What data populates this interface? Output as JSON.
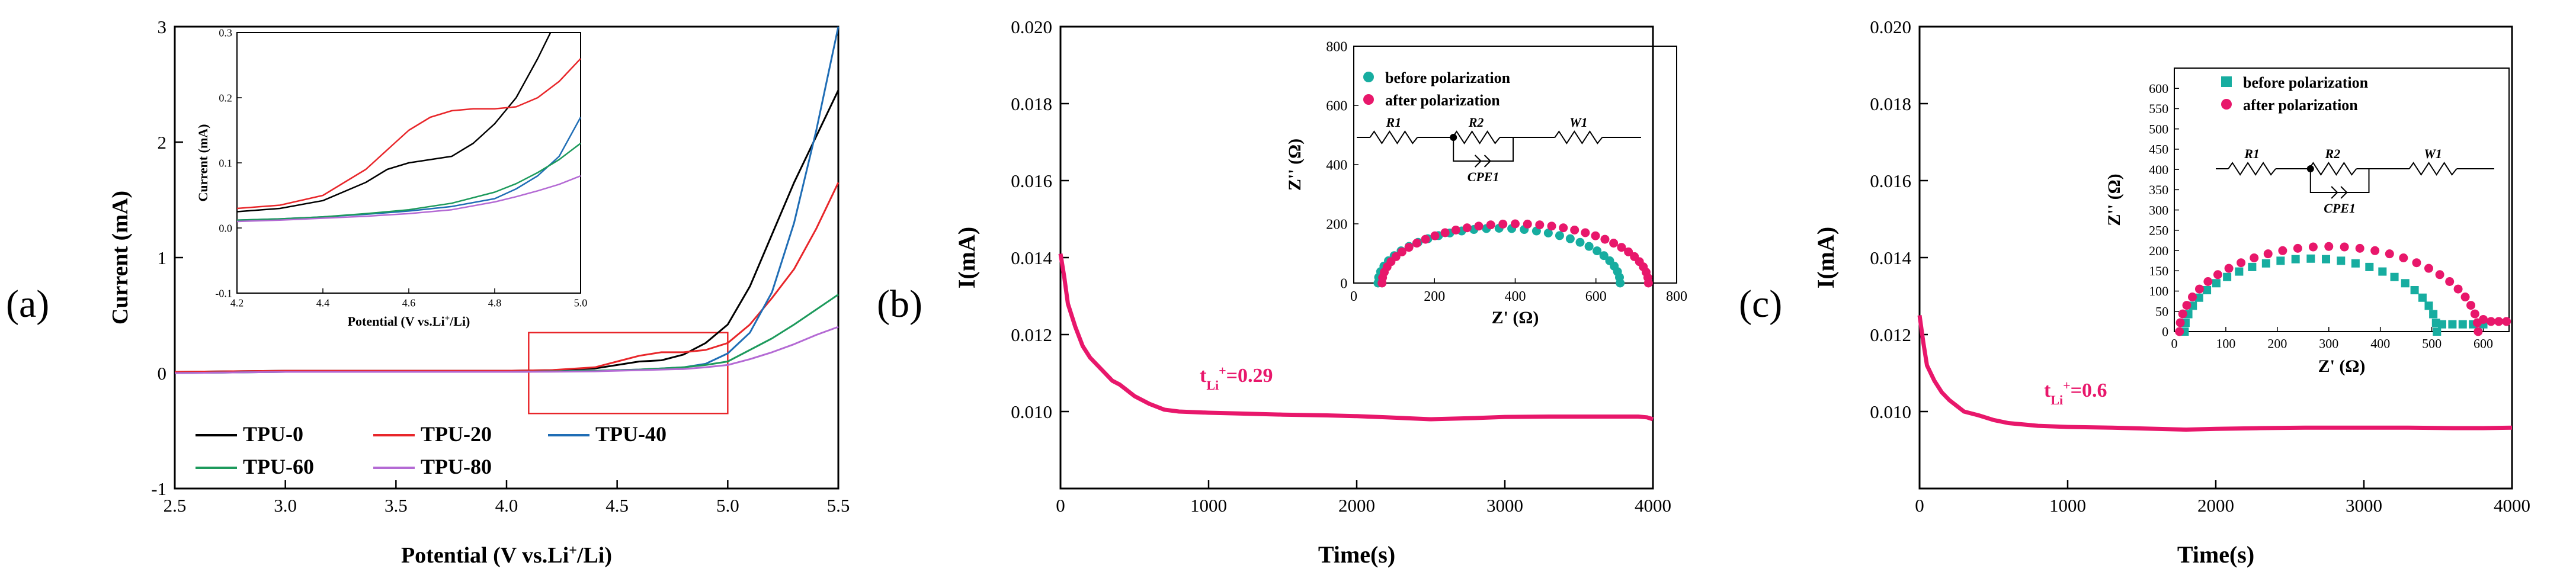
{
  "colors": {
    "tpu0": "#000000",
    "tpu20": "#e8262a",
    "tpu40": "#1f6db5",
    "tpu60": "#1d9a5c",
    "tpu80": "#b46ad4",
    "pink": "#e8176b",
    "teal": "#17ada0",
    "inset_box": "#e8262a"
  },
  "chart_data": [
    {
      "type": "line",
      "panel_label": "(a)",
      "xlabel_pre": "Potential (V vs.Li",
      "xlabel_sup": "+",
      "xlabel_post": "/Li)",
      "ylabel": "Current (mA)",
      "xlim": [
        2.5,
        5.5
      ],
      "ylim": [
        -1,
        3
      ],
      "xticks": [
        2.5,
        3.0,
        3.5,
        4.0,
        4.5,
        5.0,
        5.5
      ],
      "xtick_labels": [
        "2.5",
        "3.0",
        "3.5",
        "4.0",
        "4.5",
        "5.0",
        "5.5"
      ],
      "yticks": [
        -1,
        0,
        1,
        2,
        3
      ],
      "ytick_labels": [
        "-1",
        "0",
        "1",
        "2",
        "3"
      ],
      "legend": "bottom-left",
      "series": [
        {
          "name": "TPU-0",
          "color_key": "tpu0",
          "x": [
            2.5,
            3.0,
            3.5,
            4.0,
            4.2,
            4.4,
            4.5,
            4.6,
            4.7,
            4.8,
            4.9,
            5.0,
            5.1,
            5.2,
            5.3,
            5.4,
            5.5
          ],
          "y": [
            0.01,
            0.02,
            0.02,
            0.02,
            0.025,
            0.04,
            0.07,
            0.1,
            0.11,
            0.16,
            0.26,
            0.42,
            0.75,
            1.2,
            1.65,
            2.05,
            2.45
          ]
        },
        {
          "name": "TPU-20",
          "color_key": "tpu20",
          "x": [
            2.5,
            3.0,
            3.5,
            4.0,
            4.2,
            4.4,
            4.5,
            4.6,
            4.7,
            4.8,
            4.9,
            5.0,
            5.1,
            5.2,
            5.3,
            5.4,
            5.5
          ],
          "y": [
            0.01,
            0.02,
            0.02,
            0.02,
            0.025,
            0.05,
            0.1,
            0.15,
            0.18,
            0.18,
            0.2,
            0.26,
            0.42,
            0.65,
            0.9,
            1.25,
            1.65
          ]
        },
        {
          "name": "TPU-40",
          "color_key": "tpu40",
          "x": [
            2.5,
            3.0,
            3.5,
            4.0,
            4.2,
            4.4,
            4.5,
            4.6,
            4.7,
            4.8,
            4.9,
            5.0,
            5.1,
            5.2,
            5.3,
            5.4,
            5.5
          ],
          "y": [
            0.0,
            0.01,
            0.01,
            0.01,
            0.015,
            0.02,
            0.025,
            0.03,
            0.04,
            0.05,
            0.08,
            0.17,
            0.35,
            0.7,
            1.3,
            2.1,
            3.0
          ]
        },
        {
          "name": "TPU-60",
          "color_key": "tpu60",
          "x": [
            2.5,
            3.0,
            3.5,
            4.0,
            4.2,
            4.4,
            4.5,
            4.6,
            4.7,
            4.8,
            4.9,
            5.0,
            5.1,
            5.2,
            5.3,
            5.4,
            5.5
          ],
          "y": [
            0.0,
            0.01,
            0.01,
            0.01,
            0.015,
            0.02,
            0.025,
            0.03,
            0.04,
            0.05,
            0.07,
            0.1,
            0.2,
            0.3,
            0.42,
            0.55,
            0.68
          ]
        },
        {
          "name": "TPU-80",
          "color_key": "tpu80",
          "x": [
            2.5,
            3.0,
            3.5,
            4.0,
            4.2,
            4.4,
            4.5,
            4.6,
            4.7,
            4.8,
            4.9,
            5.0,
            5.1,
            5.2,
            5.3,
            5.4,
            5.5
          ],
          "y": [
            0.0,
            0.01,
            0.01,
            0.01,
            0.012,
            0.015,
            0.02,
            0.025,
            0.03,
            0.035,
            0.05,
            0.07,
            0.12,
            0.18,
            0.25,
            0.33,
            0.4
          ]
        }
      ],
      "highlight_box": {
        "x": [
          4.1,
          5.0
        ],
        "y": [
          -0.35,
          0.35
        ]
      },
      "inset": {
        "xlabel_pre": "Potential (V vs.Li",
        "xlabel_sup": "+",
        "xlabel_post": "/Li)",
        "ylabel": "Current (mA)",
        "xlim": [
          4.2,
          5.0
        ],
        "ylim": [
          -0.1,
          0.3
        ],
        "xticks": [
          4.2,
          4.4,
          4.6,
          4.8,
          5.0
        ],
        "xtick_labels": [
          "4.2",
          "4.4",
          "4.6",
          "4.8",
          "5.0"
        ],
        "yticks": [
          -0.1,
          0.0,
          0.1,
          0.2,
          0.3
        ],
        "ytick_labels": [
          "-0.1",
          "0.0",
          "0.1",
          "0.2",
          "0.3"
        ],
        "series": [
          {
            "name": "TPU-0",
            "color_key": "tpu0",
            "x": [
              4.2,
              4.3,
              4.4,
              4.5,
              4.55,
              4.6,
              4.65,
              4.7,
              4.75,
              4.8,
              4.85,
              4.9,
              4.93
            ],
            "y": [
              0.025,
              0.03,
              0.042,
              0.07,
              0.09,
              0.1,
              0.105,
              0.11,
              0.13,
              0.16,
              0.2,
              0.26,
              0.3
            ]
          },
          {
            "name": "TPU-20",
            "color_key": "tpu20",
            "x": [
              4.2,
              4.3,
              4.4,
              4.5,
              4.55,
              4.6,
              4.65,
              4.7,
              4.75,
              4.8,
              4.85,
              4.9,
              4.95,
              5.0
            ],
            "y": [
              0.03,
              0.035,
              0.05,
              0.09,
              0.12,
              0.15,
              0.17,
              0.18,
              0.183,
              0.183,
              0.186,
              0.2,
              0.225,
              0.26
            ]
          },
          {
            "name": "TPU-40",
            "color_key": "tpu40",
            "x": [
              4.2,
              4.3,
              4.4,
              4.5,
              4.6,
              4.7,
              4.8,
              4.85,
              4.9,
              4.95,
              5.0
            ],
            "y": [
              0.012,
              0.014,
              0.017,
              0.021,
              0.026,
              0.033,
              0.045,
              0.06,
              0.08,
              0.11,
              0.17
            ]
          },
          {
            "name": "TPU-60",
            "color_key": "tpu60",
            "x": [
              4.2,
              4.3,
              4.4,
              4.5,
              4.6,
              4.7,
              4.8,
              4.85,
              4.9,
              4.95,
              5.0
            ],
            "y": [
              0.012,
              0.014,
              0.017,
              0.022,
              0.028,
              0.038,
              0.055,
              0.068,
              0.085,
              0.105,
              0.13
            ]
          },
          {
            "name": "TPU-80",
            "color_key": "tpu80",
            "x": [
              4.2,
              4.3,
              4.4,
              4.5,
              4.6,
              4.7,
              4.8,
              4.85,
              4.9,
              4.95,
              5.0
            ],
            "y": [
              0.01,
              0.012,
              0.015,
              0.018,
              0.022,
              0.028,
              0.04,
              0.048,
              0.057,
              0.067,
              0.08
            ]
          }
        ]
      }
    },
    {
      "type": "line",
      "panel_label": "(b)",
      "xlabel": "Time(s)",
      "ylabel": "I(mA)",
      "xlim": [
        0,
        4000
      ],
      "ylim": [
        0.008,
        0.02
      ],
      "xticks": [
        0,
        1000,
        2000,
        3000,
        4000
      ],
      "xtick_labels": [
        "0",
        "1000",
        "2000",
        "3000",
        "4000"
      ],
      "yticks": [
        0.01,
        0.012,
        0.014,
        0.016,
        0.018,
        0.02
      ],
      "ytick_labels": [
        "0.010",
        "0.012",
        "0.014",
        "0.016",
        "0.018",
        "0.020"
      ],
      "annotation": {
        "pre": "t",
        "sub": "Li",
        "sup": "+",
        "post": "=0.29"
      },
      "series": [
        {
          "name": "",
          "color_key": "pink",
          "x": [
            0,
            25,
            50,
            100,
            150,
            200,
            250,
            300,
            350,
            400,
            500,
            600,
            700,
            800,
            1000,
            1200,
            1500,
            1800,
            2000,
            2200,
            2500,
            2800,
            3000,
            3300,
            3600,
            3900,
            3960,
            4000
          ],
          "y": [
            0.0141,
            0.0135,
            0.0128,
            0.0122,
            0.0117,
            0.0114,
            0.0112,
            0.011,
            0.0108,
            0.0107,
            0.0104,
            0.0102,
            0.01005,
            0.01,
            0.00997,
            0.00995,
            0.00992,
            0.0099,
            0.00988,
            0.00985,
            0.0098,
            0.00983,
            0.00986,
            0.00987,
            0.00987,
            0.00987,
            0.00985,
            0.0098
          ]
        }
      ],
      "inset": {
        "xlabel": "Z' (Ω)",
        "ylabel": "Z'' (Ω)",
        "xlim": [
          0,
          800
        ],
        "ylim": [
          0,
          800
        ],
        "xticks": [
          0,
          200,
          400,
          600,
          800
        ],
        "xtick_labels": [
          "0",
          "200",
          "400",
          "600",
          "800"
        ],
        "yticks": [
          0,
          200,
          400,
          600,
          800
        ],
        "ytick_labels": [
          "0",
          "200",
          "400",
          "600",
          "800"
        ],
        "legend": "top",
        "circuit": {
          "labels": [
            "R1",
            "R2",
            "W1",
            "CPE1"
          ]
        },
        "series": [
          {
            "name": "before polarization",
            "color_key": "teal",
            "center": 360,
            "radius": 300,
            "amp": 185,
            "n": 30
          },
          {
            "name": "after polarization",
            "color_key": "pink",
            "center": 400,
            "radius": 330,
            "amp": 200,
            "n": 34
          }
        ]
      }
    },
    {
      "type": "line",
      "panel_label": "(c)",
      "xlabel": "Time(s)",
      "ylabel": "I(mA)",
      "xlim": [
        0,
        4000
      ],
      "ylim": [
        0.008,
        0.02
      ],
      "xticks": [
        0,
        1000,
        2000,
        3000,
        4000
      ],
      "xtick_labels": [
        "0",
        "1000",
        "2000",
        "3000",
        "4000"
      ],
      "yticks": [
        0.01,
        0.012,
        0.014,
        0.016,
        0.018,
        0.02
      ],
      "ytick_labels": [
        "0.010",
        "0.012",
        "0.014",
        "0.016",
        "0.018",
        "0.020"
      ],
      "annotation": {
        "pre": "t",
        "sub": "Li",
        "sup": "+",
        "post": "=0.6"
      },
      "series": [
        {
          "name": "",
          "color_key": "pink",
          "x": [
            0,
            25,
            50,
            100,
            150,
            200,
            300,
            400,
            500,
            600,
            800,
            1000,
            1300,
            1600,
            1800,
            2000,
            2300,
            2600,
            3000,
            3300,
            3600,
            3800,
            4000
          ],
          "y": [
            0.0125,
            0.0118,
            0.0112,
            0.0108,
            0.0105,
            0.0103,
            0.01,
            0.0099,
            0.00978,
            0.0097,
            0.00963,
            0.0096,
            0.00958,
            0.00955,
            0.00953,
            0.00955,
            0.00957,
            0.00958,
            0.00958,
            0.00958,
            0.00957,
            0.00957,
            0.00958
          ]
        }
      ],
      "inset": {
        "xlabel": "Z' (Ω)",
        "ylabel": "Z'' (Ω)",
        "xlim": [
          0,
          650
        ],
        "ylim": [
          0,
          650
        ],
        "xticks": [
          0,
          100,
          200,
          300,
          400,
          500,
          600
        ],
        "xtick_labels": [
          "0",
          "100",
          "200",
          "300",
          "400",
          "500",
          "600"
        ],
        "yticks": [
          0,
          50,
          100,
          150,
          200,
          250,
          300,
          350,
          400,
          450,
          500,
          550,
          600
        ],
        "ytick_labels": [
          "0",
          "50",
          "100",
          "150",
          "200",
          "250",
          "300",
          "350",
          "400",
          "450",
          "500",
          "550",
          "600"
        ],
        "legend": "top",
        "circuit": {
          "labels": [
            "R1",
            "R2",
            "W1",
            "CPE1"
          ]
        },
        "series": [
          {
            "name": "before polarization",
            "color_key": "teal",
            "center": 265,
            "radius": 245,
            "amp": 180,
            "n": 26,
            "tail": [
              [
                520,
                18
              ],
              [
                540,
                18
              ],
              [
                560,
                18
              ],
              [
                580,
                18
              ],
              [
                600,
                18
              ]
            ]
          },
          {
            "name": "after polarization",
            "color_key": "pink",
            "center": 300,
            "radius": 290,
            "amp": 210,
            "n": 30,
            "tail": [
              [
                600,
                30
              ],
              [
                615,
                25
              ],
              [
                630,
                25
              ],
              [
                645,
                25
              ]
            ]
          }
        ]
      }
    }
  ]
}
